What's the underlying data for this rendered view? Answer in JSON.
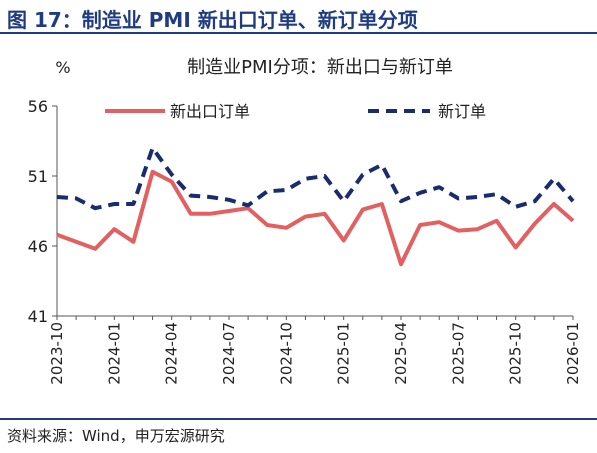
{
  "figure": {
    "title": "图 17：制造业 PMI 新出口订单、新订单分项",
    "source": "资料来源：Wind，申万宏源研究"
  },
  "chart_data": {
    "type": "line",
    "title": "制造业PMI分项：新出口与新订单",
    "ylabel": "%",
    "ylim": [
      41,
      56
    ],
    "yticks": [
      41,
      46,
      51,
      56
    ],
    "grid": false,
    "legend_position": "top",
    "x": [
      "2023-10",
      "2023-11",
      "2023-12",
      "2024-01",
      "2024-02",
      "2024-03",
      "2024-04",
      "2024-05",
      "2024-06",
      "2024-07",
      "2024-08",
      "2024-09",
      "2024-10",
      "2024-11",
      "2024-12",
      "2025-01",
      "2025-02",
      "2025-03",
      "2025-04",
      "2025-05",
      "2025-06",
      "2025-07",
      "2025-08",
      "2025-09",
      "2025-10",
      "2025-11",
      "2025-12",
      "2026-01"
    ],
    "xticks": [
      "2023-10",
      "2024-01",
      "2024-04",
      "2024-07",
      "2024-10",
      "2025-01",
      "2025-04",
      "2025-07",
      "2025-10",
      "2026-01"
    ],
    "series": [
      {
        "name": "新出口订单",
        "color": "#e36060",
        "dash": "solid",
        "values": [
          46.8,
          46.3,
          45.8,
          47.2,
          46.3,
          51.3,
          50.6,
          48.3,
          48.3,
          48.5,
          48.7,
          47.5,
          47.3,
          48.1,
          48.3,
          46.4,
          48.6,
          49.0,
          44.7,
          47.5,
          47.7,
          47.1,
          47.2,
          47.8,
          45.9,
          47.6,
          49.0,
          47.8
        ]
      },
      {
        "name": "新订单",
        "color": "#1a2c6e",
        "dash": "dashed",
        "values": [
          49.5,
          49.4,
          48.7,
          49.0,
          49.0,
          53.0,
          51.1,
          49.6,
          49.5,
          49.3,
          48.9,
          49.9,
          50.0,
          50.8,
          51.0,
          49.2,
          51.1,
          51.8,
          49.2,
          49.8,
          50.2,
          49.4,
          49.5,
          49.7,
          48.8,
          49.2,
          50.8,
          49.2
        ]
      }
    ]
  }
}
